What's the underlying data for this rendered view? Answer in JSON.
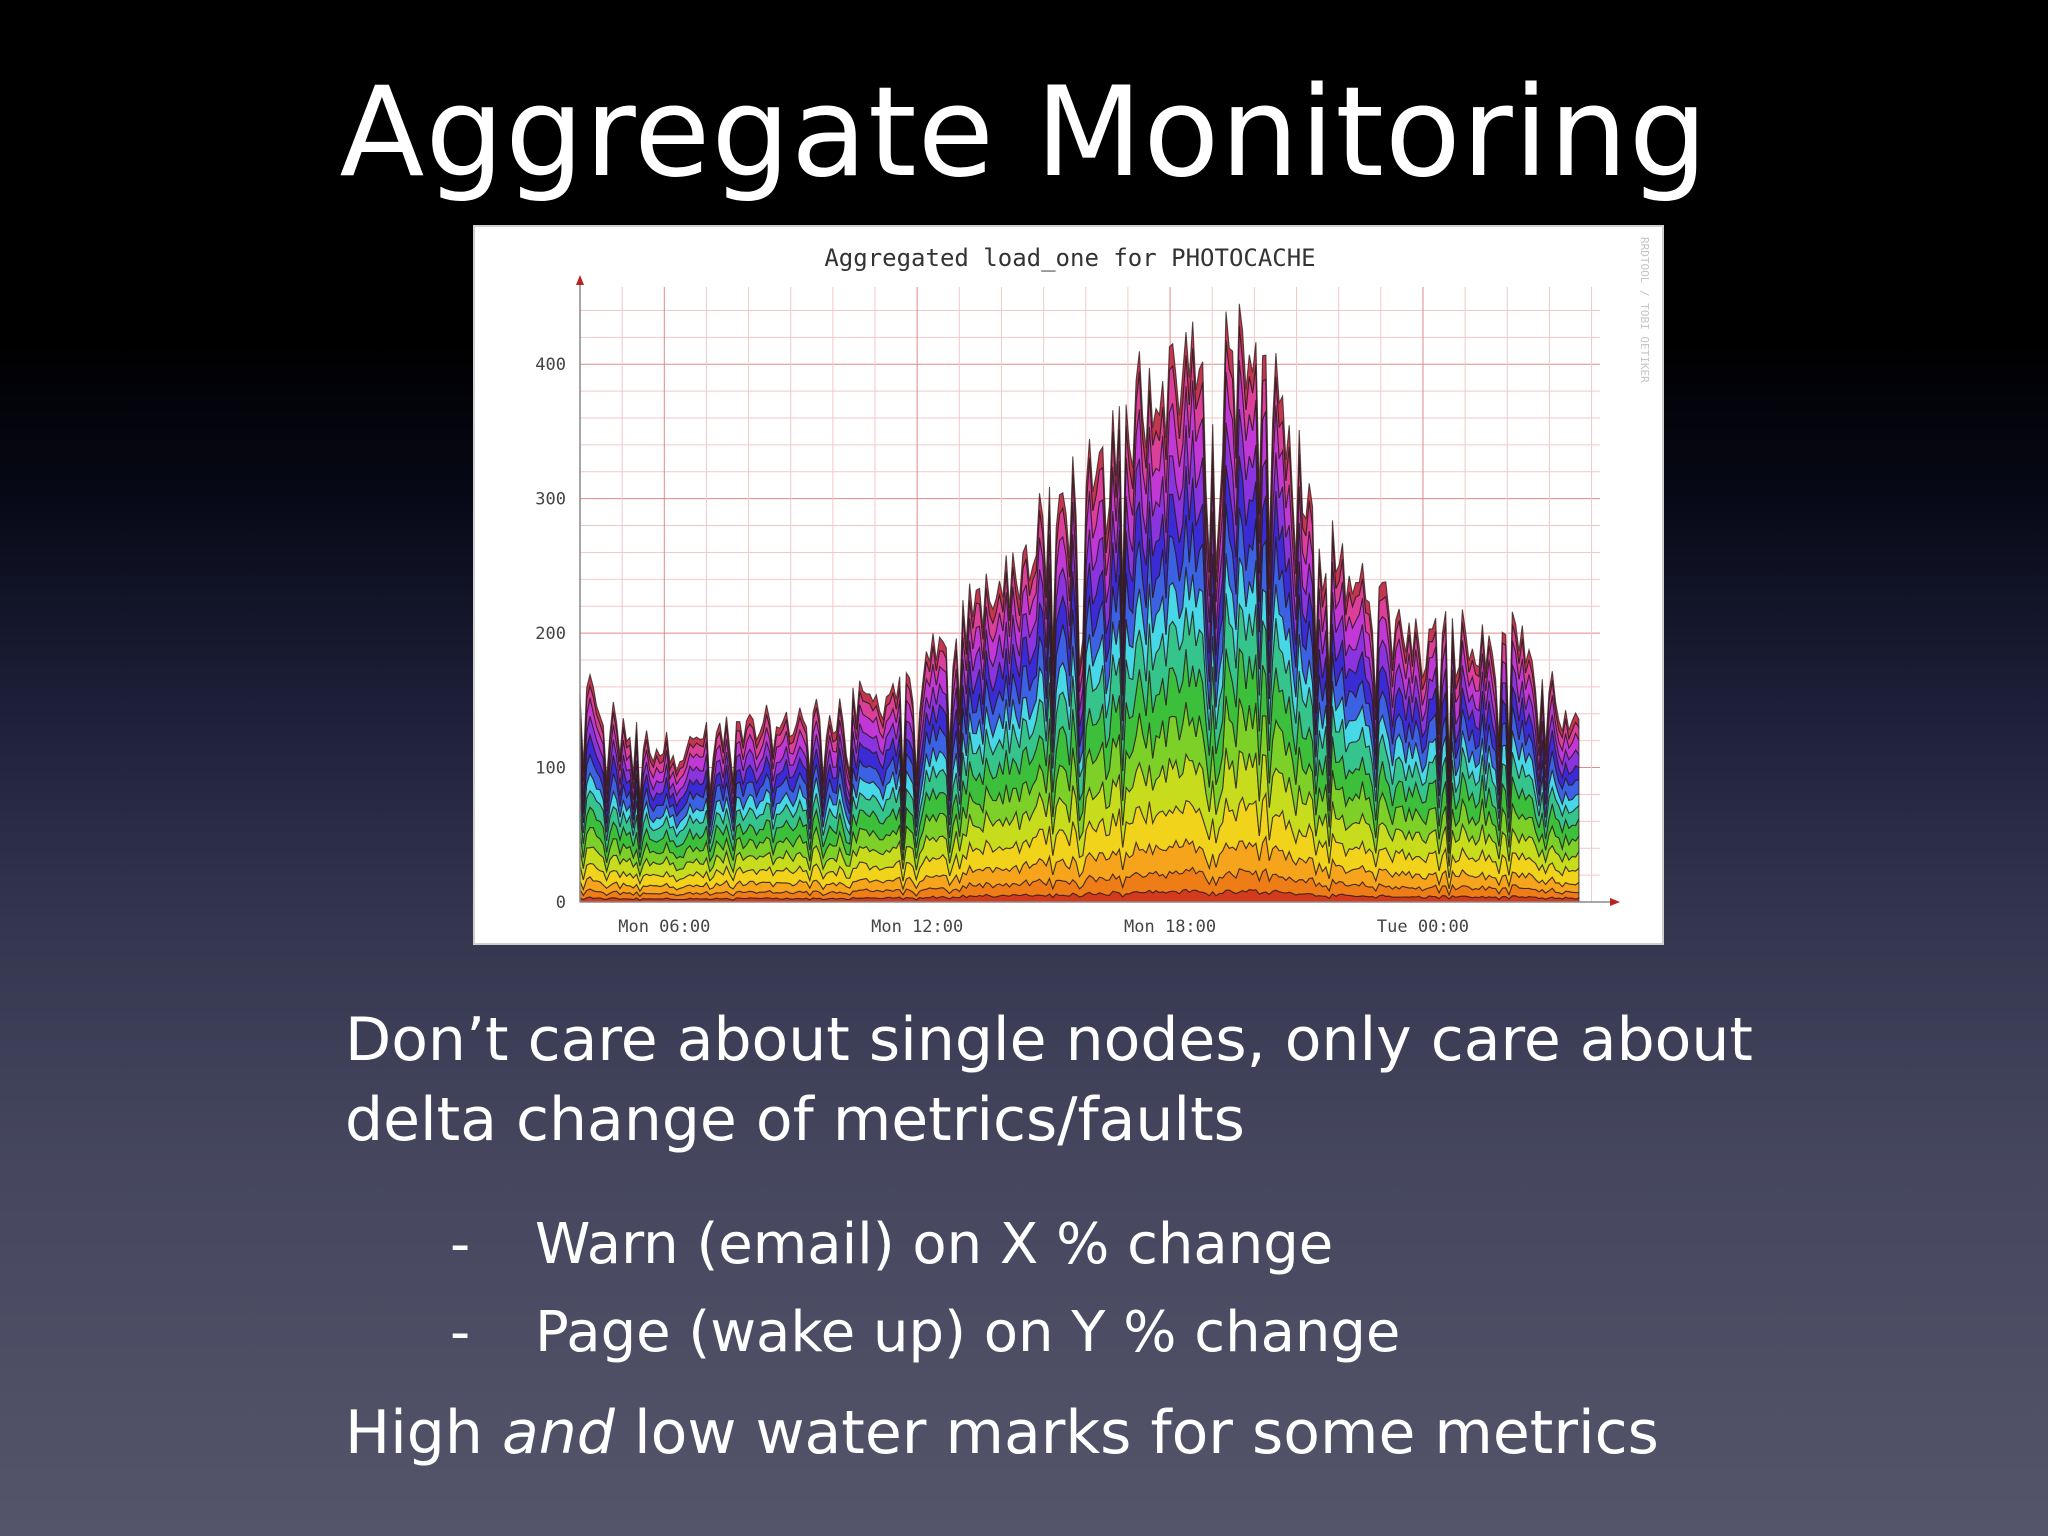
{
  "slide": {
    "title": "Aggregate Monitoring",
    "paragraph": "Don’t care about single nodes, only care about delta change of metrics/faults",
    "bullets": [
      {
        "dash": "-",
        "text": "Warn (email) on X % change"
      },
      {
        "dash": "-",
        "text": "Page (wake up) on Y % change"
      }
    ],
    "last_line": {
      "before": "High ",
      "emphasis": "and",
      "after": " low water marks for some metrics"
    }
  },
  "chart_data": {
    "type": "area",
    "title": "Aggregated load_one for PHOTOCACHE",
    "watermark": "RRDTOOL / TOBI OETIKER",
    "x_tick_labels": [
      "Mon 06:00",
      "Mon 12:00",
      "Mon 18:00",
      "Tue 00:00"
    ],
    "y_tick_labels": [
      "0",
      "100",
      "200",
      "300",
      "400"
    ],
    "ylim": [
      0,
      450
    ],
    "x_hours": [
      4,
      6,
      8,
      10,
      12,
      14,
      16,
      18,
      20,
      22,
      24,
      26,
      28
    ],
    "total": [
      150,
      115,
      125,
      140,
      165,
      240,
      300,
      400,
      400,
      250,
      190,
      185,
      130
    ],
    "band_colors": [
      "#d43a1c",
      "#ee7d18",
      "#f5a41c",
      "#f1d31b",
      "#c6dc1d",
      "#7cd028",
      "#3cbf3b",
      "#36c48d",
      "#46d8e6",
      "#3a62e2",
      "#3b2bd4",
      "#8a34e0",
      "#c238d6",
      "#dc3f9a",
      "#c3364f"
    ],
    "band_fractions": [
      0.02,
      0.035,
      0.05,
      0.07,
      0.08,
      0.08,
      0.085,
      0.085,
      0.07,
      0.08,
      0.08,
      0.075,
      0.08,
      0.065,
      0.045
    ],
    "grid": true
  }
}
